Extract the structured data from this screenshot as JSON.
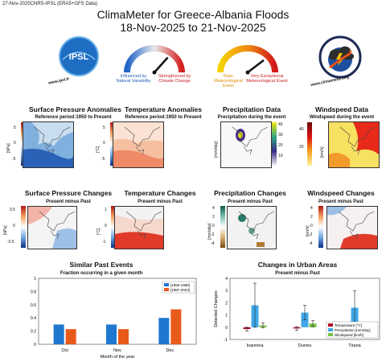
{
  "header_note": "27-Nov-2025CNRS-IPSL (ERA5+GFS Data)",
  "title_line1": "ClimaMeter for Greece-Albania Floods",
  "title_line2": "18-Nov-2025 to 21-Nov-2025",
  "logos": {
    "ipsl_text": "IPSL",
    "ipsl_url": "www.ipsl.fr",
    "cm_url": "www.climameter.org"
  },
  "gauges": [
    {
      "left_label": "Influenced by Natural Variability",
      "right_label": "Strengthened by Climate Change",
      "needle_fraction": 0.72
    },
    {
      "left_label": "Rare Meteorological Event",
      "right_label": "Very Exceptional Meteorological Event",
      "needle_fraction": 0.78
    }
  ],
  "row1": [
    {
      "title": "Surface Pressure Anomalies",
      "sub": "Reference period:1950 to Present",
      "unit": "[hPa]",
      "ticks": [
        "5",
        "0",
        "-5"
      ]
    },
    {
      "title": "Temperature Anomalies",
      "sub": "Reference period:1950 to Present",
      "unit": "[°C]",
      "ticks": [
        "5",
        "0",
        "-5"
      ]
    },
    {
      "title": "Precipitation Data",
      "sub": "Precipitation during the event",
      "unit": "[mm/day]",
      "ticks": [
        "40",
        "30",
        "20",
        "10"
      ]
    },
    {
      "title": "Windspeed Data",
      "sub": "Windspeed during the event",
      "unit": "[km/h]",
      "ticks": [
        "40",
        "20"
      ]
    }
  ],
  "row2": [
    {
      "title": "Surface Pressure Changes",
      "sub": "Present minus Past",
      "unit": "[hPa]",
      "ticks": [
        "0.5",
        "0",
        "-0.5"
      ]
    },
    {
      "title": "Temperature Changes",
      "sub": "Present minus Past",
      "unit": "[°C]",
      "ticks": [
        "1",
        "0",
        "-1"
      ]
    },
    {
      "title": "Precipitation Changes",
      "sub": "Present minus Past",
      "unit": "[mm/day]",
      "ticks": [
        "4",
        "2",
        "0",
        "-2",
        "-4"
      ]
    },
    {
      "title": "Windspeed Changes",
      "sub": "Present minus Past",
      "unit": "[km/h]",
      "ticks": [
        "4",
        "2",
        "0",
        "-2",
        "-4"
      ]
    }
  ],
  "map_labels": {
    "lat1": "42°N",
    "lat2": "36°N",
    "lon1": "18°E",
    "lon2": "24°E"
  },
  "chart_data": [
    {
      "type": "bar",
      "title": "Similar Past Events",
      "subtitle": "Fraction occurring in a given month",
      "xlabel": "Month of the year",
      "ylabel": "",
      "categories": [
        "Oct",
        "Nov",
        "Dec"
      ],
      "ylim": [
        0,
        1
      ],
      "yticks": [
        "0",
        "0.2",
        "0.4",
        "0.6",
        "0.8",
        "1"
      ],
      "series": [
        {
          "name": "[1950-1986]",
          "color": "#1f77d0",
          "values": [
            0.3,
            0.3,
            0.4
          ]
        },
        {
          "name": "[1987-2023]",
          "color": "#e85a1a",
          "values": [
            0.23,
            0.23,
            0.53
          ]
        }
      ]
    },
    {
      "type": "bar",
      "title": "Changes in Urban Areas",
      "subtitle": "Present minus Past",
      "xlabel": "",
      "ylabel": "Detected Changes",
      "categories": [
        "Ioannina",
        "Durres",
        "Tirana"
      ],
      "ylim": [
        -1,
        4
      ],
      "yticks": [
        "-1",
        "0",
        "1",
        "2",
        "3",
        "4"
      ],
      "series": [
        {
          "name": "Temperature [°C]",
          "color": "#b0122a",
          "values": [
            -0.15,
            -0.1,
            -0.15
          ],
          "err": [
            0.15,
            0.15,
            0.15
          ]
        },
        {
          "name": "Precipitation [mm/day]",
          "color": "#3fa8e8",
          "values": [
            1.8,
            1.2,
            1.6
          ],
          "err": [
            1.8,
            0.6,
            1.4
          ]
        },
        {
          "name": "Windspeed [km/h]",
          "color": "#78c040",
          "values": [
            0.15,
            0.3,
            0.15
          ],
          "err": [
            0.2,
            0.25,
            0.2
          ]
        }
      ]
    }
  ]
}
